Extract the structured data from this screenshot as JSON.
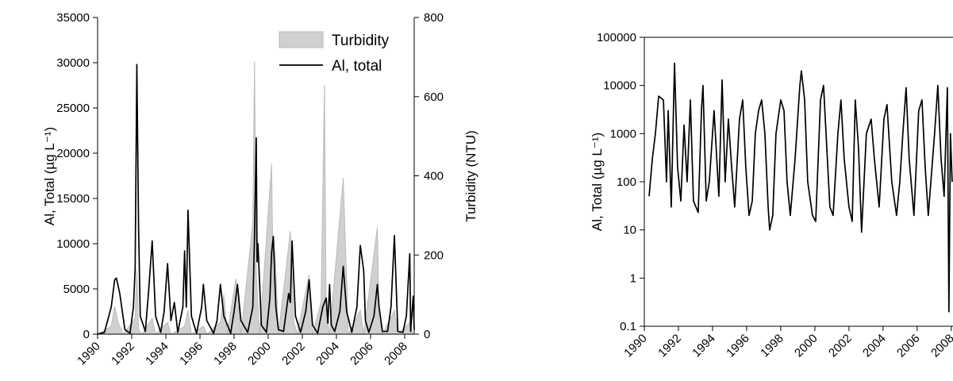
{
  "chart_data": [
    {
      "type": "combo",
      "ylabel": "Al, Total (µg L⁻¹)",
      "y2label": "Turbidity (NTU)",
      "xlim": [
        1990,
        2008.56
      ],
      "xticks": [
        1990,
        1992,
        1994,
        1996,
        1998,
        2000,
        2002,
        2004,
        2006,
        2008
      ],
      "ylim": [
        0,
        35000
      ],
      "yticks": [
        0,
        5000,
        10000,
        15000,
        20000,
        25000,
        30000,
        35000
      ],
      "y2lim": [
        0,
        800
      ],
      "y2ticks": [
        0,
        200,
        400,
        600,
        800
      ],
      "legend": "upper right",
      "series": [
        {
          "name": "Turbidity",
          "type": "area",
          "axis": "y2",
          "color": "#d0d0d0",
          "x": [
            1990.0,
            1990.8,
            1991.0,
            1991.2,
            1991.5,
            1992.2,
            1992.3,
            1992.4,
            1992.6,
            1993.2,
            1993.4,
            1994.1,
            1994.3,
            1995.1,
            1995.3,
            1995.5,
            1996.2,
            1996.4,
            1997.2,
            1997.4,
            1997.6,
            1998.1,
            1998.2,
            1998.4,
            1999.1,
            1999.2,
            1999.3,
            1999.5,
            2000.2,
            2000.3,
            2000.4,
            2000.6,
            2001.3,
            2001.5,
            2001.7,
            2002.4,
            2002.6,
            2003.1,
            2003.3,
            2003.4,
            2003.6,
            2004.4,
            2004.5,
            2004.7,
            2005.4,
            2005.6,
            2006.4,
            2006.5,
            2006.7,
            2007.4,
            2007.6,
            2008.3,
            2008.5
          ],
          "values": [
            0,
            20,
            70,
            30,
            0,
            40,
            160,
            10,
            0,
            40,
            0,
            30,
            0,
            20,
            60,
            0,
            20,
            0,
            30,
            100,
            0,
            140,
            120,
            0,
            280,
            690,
            150,
            0,
            430,
            100,
            210,
            0,
            260,
            30,
            0,
            150,
            0,
            80,
            630,
            50,
            0,
            395,
            260,
            0,
            60,
            0,
            270,
            40,
            0,
            60,
            0,
            30,
            0
          ]
        },
        {
          "name": "Al, total",
          "type": "line",
          "color": "#000000",
          "x": [
            1990.0,
            1990.4,
            1990.8,
            1991.0,
            1991.1,
            1991.3,
            1991.6,
            1991.9,
            1992.1,
            1992.2,
            1992.3,
            1992.4,
            1992.5,
            1992.8,
            1993.0,
            1993.2,
            1993.4,
            1993.7,
            1993.9,
            1994.1,
            1994.3,
            1994.5,
            1994.7,
            1995.0,
            1995.1,
            1995.2,
            1995.3,
            1995.5,
            1995.8,
            1996.1,
            1996.2,
            1996.4,
            1996.8,
            1997.0,
            1997.2,
            1997.4,
            1997.8,
            1998.0,
            1998.2,
            1998.4,
            1998.8,
            1999.1,
            1999.2,
            1999.3,
            1999.35,
            1999.4,
            1999.6,
            1999.9,
            2000.1,
            2000.2,
            2000.3,
            2000.45,
            2000.6,
            2000.9,
            2001.2,
            2001.3,
            2001.4,
            2001.5,
            2001.6,
            2001.9,
            2002.2,
            2002.4,
            2002.6,
            2002.9,
            2003.2,
            2003.4,
            2003.5,
            2003.6,
            2003.7,
            2003.9,
            2004.2,
            2004.4,
            2004.6,
            2004.9,
            2005.2,
            2005.4,
            2005.6,
            2005.7,
            2005.9,
            2006.2,
            2006.4,
            2006.5,
            2006.7,
            2007.0,
            2007.2,
            2007.4,
            2007.5,
            2007.6,
            2007.9,
            2008.1,
            2008.3,
            2008.35,
            2008.5,
            2008.56
          ],
          "values": [
            0,
            200,
            3000,
            6000,
            6200,
            4500,
            500,
            100,
            3000,
            7200,
            29800,
            12000,
            2000,
            300,
            5000,
            10300,
            2000,
            200,
            2500,
            7800,
            1500,
            3500,
            200,
            3000,
            9200,
            3000,
            13700,
            2000,
            100,
            3000,
            5500,
            1500,
            100,
            1500,
            5500,
            2000,
            100,
            2500,
            5500,
            1500,
            200,
            3000,
            11000,
            21700,
            8000,
            10000,
            1000,
            200,
            4000,
            9000,
            10800,
            3000,
            500,
            300,
            4500,
            3500,
            10300,
            6000,
            2000,
            200,
            2500,
            6000,
            1000,
            100,
            3000,
            4000,
            1200,
            5500,
            1000,
            300,
            2500,
            7500,
            2500,
            200,
            3000,
            9800,
            7000,
            1500,
            200,
            2000,
            5500,
            3000,
            300,
            300,
            3000,
            10900,
            5500,
            300,
            200,
            2000,
            8900,
            300,
            4200,
            500
          ]
        }
      ]
    },
    {
      "type": "line",
      "ylabel": "Al, Total (µg L⁻¹)",
      "ylog": true,
      "xlim": [
        1990,
        2008.1
      ],
      "xticks": [
        1990,
        1992,
        1994,
        1996,
        1998,
        2000,
        2002,
        2004,
        2006,
        2008
      ],
      "ylim": [
        0.1,
        100000
      ],
      "yticks": [
        0.1,
        1,
        10,
        100,
        1000,
        10000,
        100000
      ],
      "series": [
        {
          "type": "line",
          "color": "#000000",
          "x": [
            1990.28,
            1990.47,
            1990.65,
            1990.84,
            1991.12,
            1991.3,
            1991.4,
            1991.58,
            1991.77,
            1991.95,
            1992.14,
            1992.33,
            1992.51,
            1992.7,
            1992.88,
            1993.16,
            1993.35,
            1993.44,
            1993.63,
            1993.81,
            1994.09,
            1994.37,
            1994.56,
            1994.74,
            1994.93,
            1995.12,
            1995.3,
            1995.58,
            1995.77,
            1995.95,
            1996.14,
            1996.33,
            1996.51,
            1996.7,
            1996.88,
            1997.07,
            1997.26,
            1997.35,
            1997.53,
            1997.72,
            1998.0,
            1998.19,
            1998.37,
            1998.56,
            1998.84,
            1999.12,
            1999.21,
            1999.4,
            1999.58,
            1999.86,
            2000.05,
            2000.33,
            2000.51,
            2000.7,
            2000.88,
            2001.07,
            2001.35,
            2001.53,
            2001.72,
            2002.0,
            2002.19,
            2002.37,
            2002.56,
            2002.74,
            2003.02,
            2003.3,
            2003.49,
            2003.77,
            2004.05,
            2004.23,
            2004.51,
            2004.79,
            2004.98,
            2005.16,
            2005.35,
            2005.53,
            2005.81,
            2006.09,
            2006.28,
            2006.47,
            2006.65,
            2007.02,
            2007.21,
            2007.4,
            2007.58,
            2007.77,
            2007.86,
            2007.95,
            2008.05
          ],
          "values": [
            50,
            300,
            1000,
            6000,
            5000,
            100,
            3000,
            30,
            29000,
            200,
            40,
            1500,
            100,
            5000,
            40,
            23,
            3000,
            10000,
            40,
            100,
            3000,
            50,
            13000,
            100,
            2000,
            200,
            30,
            2000,
            5000,
            200,
            20,
            40,
            1000,
            3000,
            5000,
            1000,
            30,
            10,
            20,
            1000,
            5000,
            3000,
            100,
            20,
            300,
            10000,
            20000,
            5000,
            100,
            20,
            15,
            5000,
            10000,
            500,
            30,
            20,
            1000,
            5000,
            300,
            30,
            15,
            5000,
            500,
            9,
            1000,
            2000,
            300,
            30,
            2000,
            4000,
            100,
            20,
            100,
            1000,
            9000,
            300,
            20,
            3000,
            5000,
            200,
            20,
            1000,
            10000,
            300,
            50,
            9000,
            0.2,
            1000,
            100
          ]
        }
      ]
    }
  ]
}
